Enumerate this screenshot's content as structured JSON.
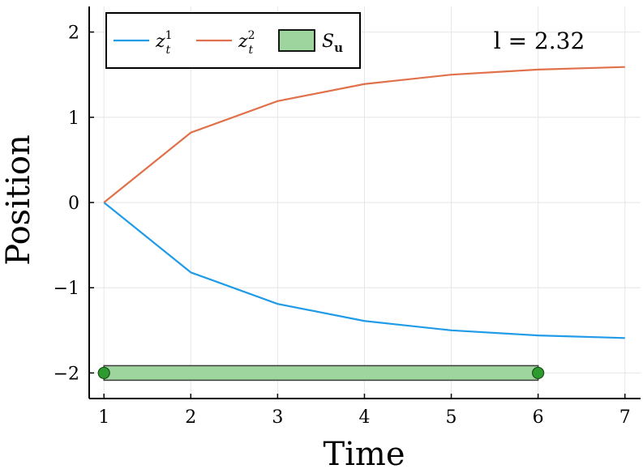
{
  "chart_data": {
    "type": "line",
    "xlabel": "Time",
    "ylabel": "Position",
    "xlim": [
      0.83,
      7.18
    ],
    "ylim": [
      -2.3,
      2.3
    ],
    "x_ticks": [
      1,
      2,
      3,
      4,
      5,
      6,
      7
    ],
    "y_ticks": [
      2,
      1,
      0,
      -1,
      -2
    ],
    "x_tick_labels": [
      "1",
      "2",
      "3",
      "4",
      "5",
      "6",
      "7"
    ],
    "y_tick_labels": [
      "2",
      "1",
      "0",
      "−1",
      "−2"
    ],
    "grid": true,
    "legend_position": "top-left",
    "annotation": "l = 2.32",
    "series": [
      {
        "name": "z_t^1",
        "label_base": "z",
        "label_sub": "t",
        "label_sup": "1",
        "color": "#1f9be8",
        "x": [
          1,
          2,
          3,
          4,
          5,
          6,
          7
        ],
        "y": [
          0,
          -0.82,
          -1.19,
          -1.39,
          -1.5,
          -1.56,
          -1.59
        ]
      },
      {
        "name": "z_t^2",
        "label_base": "z",
        "label_sub": "t",
        "label_sup": "2",
        "color": "#e0714a",
        "x": [
          1,
          2,
          3,
          4,
          5,
          6,
          7
        ],
        "y": [
          0,
          0.82,
          1.19,
          1.39,
          1.5,
          1.56,
          1.59
        ]
      }
    ],
    "interval": {
      "name": "S_u",
      "label_base": "S",
      "label_sub": "u",
      "color": "#2e9b2e",
      "fill": "#9ed49e",
      "x_start": 1,
      "x_end": 6,
      "y": -2
    }
  }
}
